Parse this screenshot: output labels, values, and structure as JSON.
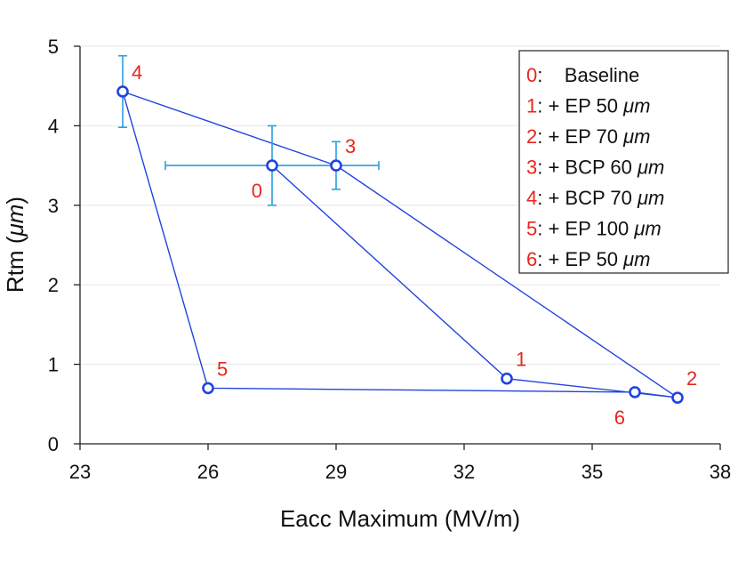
{
  "chart_data": {
    "type": "scatter",
    "title": "",
    "xlabel": "Eacc Maximum (MV/m)",
    "ylabel_main": "Rtm (",
    "ylabel_unit": "μm",
    "ylabel_close": ")",
    "xlim": [
      23,
      38
    ],
    "ylim": [
      0,
      5
    ],
    "xticks": [
      23,
      26,
      29,
      32,
      35,
      38
    ],
    "yticks": [
      0,
      1,
      2,
      3,
      4,
      5
    ],
    "grid": "horizontal",
    "legend_position": "top-right",
    "colors": {
      "series": "#2244dd",
      "errorbar": "#2a9fe0",
      "label": "#e8261c",
      "grid": "#e6e6e6"
    },
    "points": [
      {
        "label": "0",
        "x": 27.5,
        "y": 3.5,
        "xerr": 2.5,
        "yerr": 0.5,
        "label_pos": "below-left"
      },
      {
        "label": "1",
        "x": 33.0,
        "y": 0.82,
        "label_pos": "above-right"
      },
      {
        "label": "2",
        "x": 37.0,
        "y": 0.58,
        "label_pos": "above-right"
      },
      {
        "label": "3",
        "x": 29.0,
        "y": 3.5,
        "yerr": 0.3,
        "label_pos": "above-right"
      },
      {
        "label": "4",
        "x": 24.0,
        "y": 4.43,
        "yerr": 0.45,
        "label_pos": "above-right"
      },
      {
        "label": "5",
        "x": 26.0,
        "y": 0.7,
        "label_pos": "above-right"
      },
      {
        "label": "6",
        "x": 36.0,
        "y": 0.65,
        "label_pos": "below-left"
      }
    ],
    "path_order": [
      "0",
      "1",
      "2",
      "3",
      "4",
      "5",
      "6",
      "2"
    ],
    "legend": [
      {
        "num": "0",
        "text": ":    Baseline",
        "unit": ""
      },
      {
        "num": "1",
        "text": ": + EP 50 ",
        "unit": "μm"
      },
      {
        "num": "2",
        "text": ": + EP 70 ",
        "unit": "μm"
      },
      {
        "num": "3",
        "text": ": + BCP 60 ",
        "unit": "μm"
      },
      {
        "num": "4",
        "text": ": + BCP 70 ",
        "unit": "μm"
      },
      {
        "num": "5",
        "text": ": + EP 100 ",
        "unit": "μm"
      },
      {
        "num": "6",
        "text": ": + EP 50 ",
        "unit": "μm"
      }
    ]
  }
}
